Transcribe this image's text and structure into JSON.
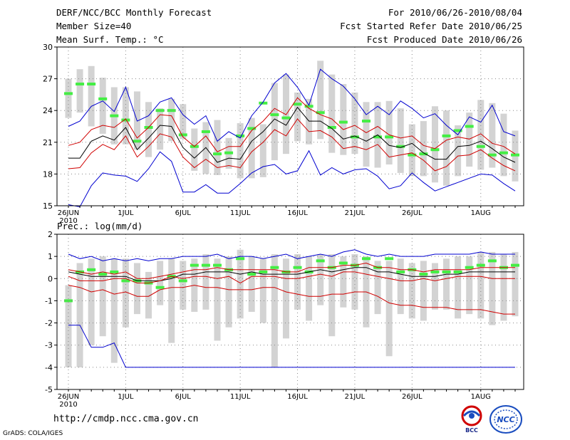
{
  "header": {
    "title": "DERF/NCC/BCC Monthly Forecast",
    "member_size": "Member Size=40",
    "variable": "Mean Surf. Temp.: °C",
    "period": "For 2010/06/26-2010/08/04",
    "started": "Fcst Started Refer Date 2010/06/25",
    "produced": "Fcst Produced Date 2010/06/26"
  },
  "footer": {
    "url": "http://cmdp.ncc.cma.gov.cn",
    "grads": "GrADS: COLA/IGES"
  },
  "logos": {
    "bcc": "BCC",
    "ncc": "NCC"
  },
  "colors": {
    "envelope": "#0000d0",
    "quartile": "#d00000",
    "median": "#000000",
    "box": "#d3d3d3",
    "marker": "#44ee44",
    "grid": "#888888"
  },
  "chart_data": [
    {
      "type": "box",
      "title": "Mean Surf. Temp.: °C",
      "ylim": [
        15,
        30
      ],
      "yticks": [
        15,
        18,
        21,
        24,
        27,
        30
      ],
      "xtick_labels": [
        "26JUN",
        "1JUL",
        "6JUL",
        "11JUL",
        "16JUL",
        "21JUL",
        "26JUL",
        "1AUG"
      ],
      "xtick_days": [
        0,
        5,
        10,
        15,
        20,
        25,
        30,
        36
      ],
      "year_label": "2010",
      "days": 40,
      "box_low": [
        23.3,
        23.8,
        22.5,
        21.8,
        20.8,
        20.8,
        20.3,
        19.6,
        20.3,
        21.1,
        21.3,
        18.3,
        18.0,
        17.9,
        18.5,
        17.6,
        17.6,
        17.7,
        19.3,
        19.9,
        21.1,
        20.8,
        21.3,
        20.0,
        19.8,
        19.9,
        18.7,
        18.6,
        18.9,
        18.1,
        17.8,
        17.8,
        17.2,
        16.9,
        17.8,
        18.7,
        18.4,
        18.6,
        17.8,
        17.3
      ],
      "box_high": [
        27.0,
        27.9,
        28.2,
        27.1,
        26.2,
        26.2,
        25.8,
        24.8,
        24.2,
        25.1,
        24.6,
        22.3,
        22.9,
        23.1,
        21.4,
        22.8,
        23.3,
        22.7,
        26.6,
        27.4,
        25.7,
        25.1,
        28.7,
        27.4,
        26.5,
        25.7,
        24.8,
        24.8,
        24.9,
        24.2,
        22.7,
        23.0,
        24.4,
        24.0,
        22.6,
        23.8,
        25.0,
        24.7,
        23.7,
        22.1
      ],
      "marker": [
        25.6,
        26.5,
        26.5,
        25.1,
        23.5,
        23.1,
        21.1,
        22.4,
        24.0,
        24.0,
        21.7,
        20.6,
        22.0,
        19.9,
        20.0,
        21.6,
        22.3,
        24.7,
        23.6,
        23.3,
        24.6,
        24.4,
        23.8,
        22.4,
        22.9,
        21.5,
        23.0,
        21.5,
        21.5,
        20.6,
        19.8,
        19.9,
        20.3,
        21.6,
        22.1,
        22.5,
        20.6,
        19.8,
        20.0,
        19.8
      ],
      "series": [
        {
          "name": "max",
          "values": [
            22.5,
            23.0,
            24.4,
            24.9,
            23.9,
            26.2,
            23.0,
            23.5,
            24.8,
            25.2,
            23.6,
            22.7,
            23.5,
            21.1,
            22.0,
            21.4,
            23.5,
            24.8,
            26.6,
            27.5,
            26.2,
            24.5,
            27.9,
            27.0,
            26.3,
            25.1,
            23.6,
            24.4,
            23.6,
            24.9,
            24.2,
            23.3,
            23.7,
            22.6,
            21.7,
            23.4,
            22.9,
            24.5,
            22.0,
            21.6
          ]
        },
        {
          "name": "upper",
          "values": [
            20.7,
            21.0,
            22.2,
            22.6,
            22.4,
            23.2,
            21.4,
            22.4,
            23.6,
            23.5,
            21.5,
            20.6,
            21.6,
            20.1,
            20.6,
            20.6,
            22.1,
            23.0,
            24.2,
            23.6,
            25.2,
            24.2,
            23.6,
            23.2,
            22.2,
            22.6,
            21.9,
            22.5,
            21.7,
            21.4,
            21.6,
            20.7,
            20.4,
            21.2,
            21.5,
            21.3,
            21.8,
            20.9,
            20.6,
            19.9
          ]
        },
        {
          "name": "median",
          "values": [
            19.5,
            19.5,
            21.1,
            21.6,
            21.2,
            22.4,
            20.3,
            21.4,
            22.6,
            22.5,
            20.5,
            19.5,
            20.5,
            19.1,
            19.5,
            19.4,
            21.1,
            22.0,
            23.2,
            22.6,
            24.3,
            23.0,
            23.0,
            22.3,
            21.3,
            21.6,
            21.1,
            21.7,
            20.7,
            20.5,
            20.9,
            20.0,
            19.4,
            19.4,
            20.6,
            20.7,
            21.1,
            20.4,
            19.6,
            19.1
          ]
        },
        {
          "name": "lower",
          "values": [
            18.5,
            18.6,
            20.0,
            20.8,
            20.3,
            21.6,
            19.6,
            20.6,
            21.8,
            21.5,
            19.6,
            18.6,
            19.4,
            18.6,
            18.8,
            18.6,
            20.1,
            21.0,
            22.2,
            21.6,
            23.2,
            22.0,
            22.1,
            21.5,
            20.4,
            20.6,
            20.3,
            20.8,
            19.6,
            19.8,
            20.0,
            19.3,
            18.3,
            18.7,
            19.7,
            19.8,
            20.3,
            19.5,
            18.8,
            18.3
          ]
        },
        {
          "name": "min",
          "values": [
            15.1,
            14.9,
            16.9,
            18.1,
            17.9,
            17.8,
            17.3,
            18.5,
            20.1,
            19.2,
            16.3,
            16.3,
            17.0,
            16.2,
            16.2,
            17.1,
            18.1,
            18.7,
            18.9,
            18.0,
            18.3,
            20.2,
            17.9,
            18.6,
            18.0,
            18.4,
            18.5,
            17.8,
            16.6,
            16.9,
            18.1,
            17.2,
            16.4,
            16.8,
            17.2,
            17.6,
            18.0,
            17.9,
            17.1,
            16.4
          ]
        }
      ]
    },
    {
      "type": "box",
      "title": "Prec.: log(mm/d)",
      "ylim": [
        -5,
        2
      ],
      "yticks": [
        -5,
        -4,
        -3,
        -2,
        -1,
        0,
        1,
        2
      ],
      "xtick_labels": [
        "26JUN",
        "1JUL",
        "6JUL",
        "11JUL",
        "16JUL",
        "21JUL",
        "26JUL",
        "1AUG"
      ],
      "xtick_days": [
        0,
        5,
        10,
        15,
        20,
        25,
        30,
        36
      ],
      "year_label": "2010",
      "days": 40,
      "box_low": [
        -4.0,
        -4.0,
        -3.0,
        -2.6,
        -3.8,
        -2.2,
        -1.6,
        -1.8,
        -1.2,
        -2.9,
        -1.4,
        -1.5,
        -1.4,
        -2.8,
        -2.2,
        -1.8,
        -1.5,
        -2.0,
        -4.0,
        -2.7,
        -1.4,
        -1.9,
        -1.2,
        -2.6,
        -1.3,
        -1.4,
        -2.2,
        -1.6,
        -3.5,
        -1.6,
        -1.8,
        -1.9,
        -1.4,
        -1.4,
        -1.8,
        -1.6,
        -1.8,
        -2.1,
        -1.9,
        -1.7
      ],
      "box_high": [
        -0.3,
        0.7,
        0.9,
        1.0,
        0.9,
        0.9,
        0.7,
        0.3,
        0.8,
        0.9,
        0.8,
        0.9,
        1.1,
        0.9,
        1.0,
        1.3,
        1.0,
        0.9,
        1.1,
        0.9,
        1.1,
        1.0,
        1.1,
        1.1,
        1.0,
        1.1,
        1.0,
        0.8,
        0.8,
        0.9,
        0.7,
        0.8,
        0.7,
        0.9,
        1.0,
        1.0,
        1.2,
        1.2,
        1.1,
        1.2
      ],
      "marker": [
        -1.0,
        0.3,
        0.4,
        0.2,
        0.3,
        -0.1,
        -0.1,
        -0.2,
        -0.4,
        0.1,
        -0.1,
        0.6,
        0.6,
        0.6,
        0.4,
        0.9,
        0.2,
        0.3,
        0.5,
        0.3,
        0.5,
        0.3,
        0.8,
        0.5,
        0.7,
        0.6,
        0.9,
        0.5,
        0.9,
        0.3,
        0.4,
        0.2,
        0.3,
        0.3,
        0.3,
        0.5,
        0.6,
        0.8,
        0.5,
        0.6
      ],
      "series": [
        {
          "name": "max",
          "values": [
            1.1,
            0.9,
            1.0,
            0.8,
            0.9,
            0.8,
            0.9,
            0.8,
            0.9,
            0.9,
            1.0,
            1.0,
            1.0,
            1.1,
            0.9,
            1.0,
            1.0,
            0.9,
            1.0,
            1.1,
            0.9,
            1.0,
            1.1,
            1.0,
            1.2,
            1.3,
            1.1,
            1.0,
            1.1,
            1.0,
            1.0,
            1.0,
            1.1,
            1.1,
            1.1,
            1.1,
            1.2,
            1.1,
            1.1,
            1.1
          ]
        },
        {
          "name": "upper",
          "values": [
            0.4,
            0.3,
            0.2,
            0.3,
            0.2,
            0.3,
            0.0,
            0.0,
            0.1,
            0.2,
            0.3,
            0.4,
            0.4,
            0.5,
            0.4,
            0.4,
            0.4,
            0.4,
            0.4,
            0.3,
            0.3,
            0.5,
            0.5,
            0.5,
            0.6,
            0.6,
            0.7,
            0.5,
            0.5,
            0.4,
            0.4,
            0.3,
            0.4,
            0.4,
            0.4,
            0.4,
            0.5,
            0.5,
            0.5,
            0.5
          ]
        },
        {
          "name": "median",
          "values": [
            0.3,
            0.2,
            0.1,
            0.1,
            0.1,
            0.1,
            -0.1,
            -0.1,
            -0.1,
            0.0,
            0.2,
            0.2,
            0.3,
            0.3,
            0.3,
            0.2,
            0.3,
            0.2,
            0.2,
            0.2,
            0.2,
            0.3,
            0.4,
            0.3,
            0.4,
            0.5,
            0.5,
            0.3,
            0.3,
            0.2,
            0.1,
            0.1,
            0.1,
            0.2,
            0.2,
            0.3,
            0.3,
            0.3,
            0.3,
            0.3
          ]
        },
        {
          "name": "lower",
          "values": [
            0.1,
            -0.1,
            -0.1,
            -0.1,
            0.0,
            0.0,
            -0.2,
            -0.2,
            -0.1,
            0.1,
            0.0,
            0.1,
            0.1,
            0.0,
            0.1,
            -0.2,
            0.1,
            0.1,
            0.1,
            0.0,
            0.0,
            0.1,
            0.2,
            0.1,
            0.3,
            0.3,
            0.2,
            0.1,
            0.0,
            -0.1,
            -0.1,
            0.0,
            -0.1,
            0.0,
            0.1,
            0.1,
            0.1,
            0.0,
            0.0,
            0.0
          ]
        },
        {
          "name": "lowline",
          "values": [
            -0.3,
            -0.4,
            -0.6,
            -0.5,
            -0.7,
            -0.6,
            -0.8,
            -0.8,
            -0.5,
            -0.4,
            -0.4,
            -0.3,
            -0.4,
            -0.4,
            -0.5,
            -0.5,
            -0.5,
            -0.4,
            -0.4,
            -0.6,
            -0.7,
            -0.8,
            -0.8,
            -0.7,
            -0.7,
            -0.6,
            -0.6,
            -0.8,
            -1.1,
            -1.2,
            -1.2,
            -1.3,
            -1.3,
            -1.3,
            -1.4,
            -1.4,
            -1.4,
            -1.5,
            -1.6,
            -1.6
          ]
        },
        {
          "name": "min",
          "values": [
            -2.1,
            -2.1,
            -3.1,
            -3.1,
            -2.9,
            -4.0,
            -4.0,
            -4.0,
            -4.0,
            -4.0,
            -4.0,
            -4.0,
            -4.0,
            -4.0,
            -4.0,
            -4.0,
            -4.0,
            -4.0,
            -4.0,
            -4.0,
            -4.0,
            -4.0,
            -4.0,
            -4.0,
            -4.0,
            -4.0,
            -4.0,
            -4.0,
            -4.0,
            -4.0,
            -4.0,
            -4.0,
            -4.0,
            -4.0,
            -4.0,
            -4.0,
            -4.0,
            -4.0,
            -4.0,
            -4.0
          ]
        }
      ]
    }
  ]
}
